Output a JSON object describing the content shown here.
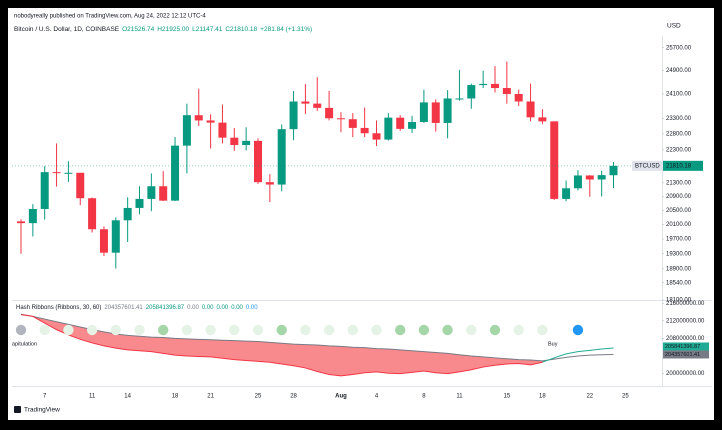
{
  "header": {
    "published": "nobodyreally published on TradingView.com, Aug 24, 2022 12:12 UTC-4"
  },
  "footer": {
    "brand": "TradingView"
  },
  "chart_data": [
    {
      "type": "candlestick",
      "symbol": "Bitcoin / U.S. Dollar, 1D, COINBASE",
      "legend": [
        "O21526.74",
        "H21925.00",
        "L21147.41",
        "C21810.18",
        "+281.84 (+1.31%)"
      ],
      "legend_color": "#089981",
      "currency": "USD",
      "symbol_badge": "BTCUSD",
      "up_color": "#089981",
      "down_color": "#f23645",
      "log_scale": true,
      "grid": false,
      "categories": [
        null,
        null,
        "7",
        null,
        null,
        null,
        "11",
        null,
        null,
        "14",
        null,
        null,
        null,
        "18",
        null,
        null,
        "21",
        null,
        null,
        null,
        "25",
        null,
        null,
        "28",
        null,
        null,
        null,
        "Aug",
        null,
        null,
        "4",
        null,
        null,
        null,
        "8",
        null,
        null,
        "11",
        null,
        null,
        null,
        "15",
        null,
        null,
        "18",
        null,
        null,
        null,
        "22",
        null,
        null,
        "25"
      ],
      "open": [
        20190,
        20140,
        20540,
        21620,
        21590,
        21600,
        20850,
        19970,
        19330,
        20220,
        20570,
        20830,
        21200,
        20780,
        22430,
        23400,
        23230,
        23160,
        22680,
        22450,
        22580,
        21320,
        21250,
        22950,
        23850,
        23780,
        23640,
        23300,
        23270,
        22990,
        22820,
        22620,
        23320,
        22960,
        23180,
        23820,
        23150,
        23950,
        23950,
        24400,
        24440,
        24300,
        24100,
        23850,
        23330,
        23200,
        20830,
        21140,
        21520,
        21400,
        21526.74,
        null
      ],
      "high": [
        20250,
        20680,
        21800,
        22500,
        21950,
        21600,
        20870,
        20050,
        20300,
        20880,
        21200,
        21580,
        21650,
        22700,
        23780,
        24280,
        23430,
        23750,
        22990,
        23010,
        22660,
        21560,
        23100,
        24200,
        24440,
        24670,
        24200,
        23500,
        23470,
        23650,
        23230,
        23470,
        23400,
        23380,
        24240,
        23920,
        24230,
        24920,
        24450,
        24890,
        25050,
        25210,
        24250,
        24450,
        23600,
        23200,
        21370,
        21680,
        21530,
        21660,
        21925,
        null
      ],
      "low": [
        19300,
        19770,
        20240,
        21190,
        21330,
        20650,
        19880,
        19240,
        18910,
        19620,
        20390,
        20480,
        20770,
        20770,
        21580,
        23050,
        22340,
        22500,
        22270,
        22280,
        21270,
        20740,
        21050,
        22600,
        23440,
        23540,
        23230,
        22850,
        22700,
        22700,
        22420,
        22590,
        22900,
        22830,
        23150,
        22870,
        22660,
        23880,
        23610,
        24300,
        24150,
        23780,
        23700,
        23200,
        23110,
        20800,
        20760,
        21080,
        20890,
        20900,
        21147.41,
        null
      ],
      "close": [
        20140,
        20540,
        21620,
        21590,
        21600,
        20850,
        19970,
        19330,
        20220,
        20570,
        20830,
        21200,
        20780,
        22430,
        23400,
        23230,
        23160,
        22680,
        22450,
        22580,
        21320,
        21250,
        22950,
        23850,
        23780,
        23640,
        23300,
        23270,
        22990,
        22820,
        22620,
        23320,
        22960,
        23180,
        23820,
        23150,
        23950,
        23950,
        24400,
        24440,
        24300,
        24100,
        23850,
        23330,
        23200,
        20830,
        21140,
        21520,
        21400,
        21530,
        21810.18,
        null
      ],
      "ylim": [
        18100,
        26050
      ],
      "yticks": [
        {
          "value": 25700,
          "label": "25700.00"
        },
        {
          "value": 24900,
          "label": "24900.00"
        },
        {
          "value": 24100,
          "label": "24100.00"
        },
        {
          "value": 23300,
          "label": "23300.00"
        },
        {
          "value": 22800,
          "label": "22800.00"
        },
        {
          "value": 22300,
          "label": "22300.00"
        },
        {
          "value": 21300,
          "label": "21300.00"
        },
        {
          "value": 20900,
          "label": "20900.00"
        },
        {
          "value": 20500,
          "label": "20500.00"
        },
        {
          "value": 20100,
          "label": "20100.00"
        },
        {
          "value": 19700,
          "label": "19700.00"
        },
        {
          "value": 19300,
          "label": "19300.00"
        },
        {
          "value": 18900,
          "label": "18900.00"
        },
        {
          "value": 18540,
          "label": "18540.00"
        },
        {
          "value": 18100,
          "label": "18100.00"
        }
      ]
    },
    {
      "type": "line",
      "title": "Hash Ribbons (Ribbons, 30, 60)",
      "legend_values": [
        204357601.41,
        205841396.87,
        0,
        0,
        0,
        0,
        0
      ],
      "value_labels": [
        "204357601.41",
        "205841396.87",
        "0.00",
        "0.00",
        "0.00",
        "0.00",
        "0.00"
      ],
      "legend_colors": [
        "#787b86",
        "#089981",
        "#787b86",
        "#089981",
        "#089981",
        "#089981",
        "#2196f3"
      ],
      "annotations": [
        "Capitulation",
        "Buy"
      ],
      "annotation_colors": [
        "#787b86",
        "#2196f3"
      ],
      "fill_color": "#f77c80",
      "series": [
        {
          "color": "#787b86",
          "values": [
            213500000,
            213000000,
            212400000,
            211800000,
            211200000,
            210600000,
            210000000,
            209500000,
            209000000,
            208700000,
            208500000,
            208300000,
            208200000,
            208000000,
            207900000,
            207800000,
            207700000,
            207600000,
            207500000,
            207400000,
            207300000,
            207100000,
            206900000,
            206700000,
            206600000,
            206500000,
            206300000,
            206200000,
            206000000,
            205900000,
            205700000,
            205600000,
            205400000,
            205200000,
            205000000,
            204800000,
            204600000,
            204300000,
            204000000,
            203800000,
            203600000,
            203400000,
            203200000,
            203100000,
            202900000,
            203300000,
            203700000,
            204000000,
            204200000,
            204300000,
            204357601.41,
            null
          ]
        },
        {
          "color": "#f23645",
          "cross_color": "#22ab94",
          "values": [
            213400000,
            213000000,
            211500000,
            210000000,
            208800000,
            207800000,
            207000000,
            206300000,
            205800000,
            205400000,
            205200000,
            205000000,
            204600000,
            204200000,
            204000000,
            203900000,
            203800000,
            203500000,
            203200000,
            203000000,
            202800000,
            202600000,
            202200000,
            201800000,
            201300000,
            200500000,
            199800000,
            199500000,
            199800000,
            200200000,
            200400000,
            200100000,
            200000000,
            200300000,
            200600000,
            200200000,
            200000000,
            200400000,
            200900000,
            201500000,
            201900000,
            202200000,
            202300000,
            202000000,
            202600000,
            203600000,
            204500000,
            205000000,
            205300000,
            205600000,
            205841396.87,
            null
          ]
        }
      ],
      "signal_colors": [
        "#b2b5be",
        null,
        "#e4f3e6",
        null,
        "#e4f3e6",
        null,
        "#e4f3e6",
        null,
        "#e4f3e6",
        null,
        "#e4f3e6",
        null,
        "#a5d6a7",
        null,
        "#e4f3e6",
        null,
        "#e4f3e6",
        null,
        "#e4f3e6",
        null,
        "#e4f3e6",
        null,
        "#a5d6a7",
        null,
        "#e4f3e6",
        null,
        "#e4f3e6",
        null,
        "#e4f3e6",
        null,
        "#e4f3e6",
        null,
        "#a5d6a7",
        null,
        "#a5d6a7",
        null,
        "#a5d6a7",
        null,
        "#e4f3e6",
        null,
        "#a5d6a7",
        null,
        "#e4f3e6",
        null,
        "#e4f3e6",
        null,
        null,
        "#2196f3",
        null,
        null,
        null,
        null,
        null,
        null
      ],
      "ylim": [
        197200000,
        216500000
      ],
      "yticks": [
        {
          "value": 216000000,
          "label": "216000000.00"
        },
        {
          "value": 212000000,
          "label": "212000000.00"
        },
        {
          "value": 208000000,
          "label": "208000000.00"
        },
        {
          "value": 200000000,
          "label": "200000000.00"
        }
      ]
    }
  ]
}
